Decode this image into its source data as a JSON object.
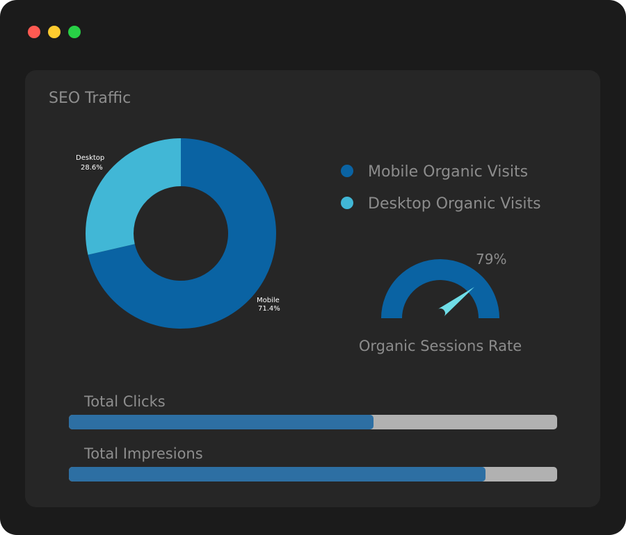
{
  "window": {
    "controls": [
      "close",
      "minimize",
      "maximize"
    ]
  },
  "panel": {
    "title": "SEO Traffic"
  },
  "chart_data": [
    {
      "type": "pie",
      "variant": "donut",
      "categories": [
        "Mobile",
        "Desktop"
      ],
      "values": [
        71.4,
        28.6
      ],
      "labels": [
        "Mobile\n71.4%",
        "Desktop\n28.6%"
      ],
      "label_text": {
        "mobile": "Mobile",
        "mobile_pct": "71.4%",
        "desktop": "Desktop",
        "desktop_pct": "28.6%"
      },
      "colors": [
        "#0a63a3",
        "#41b7d6"
      ]
    }
  ],
  "legend": [
    {
      "label": "Mobile Organic Visits",
      "color": "#0a63a3"
    },
    {
      "label": "Desktop Organic Visits",
      "color": "#41b7d6"
    }
  ],
  "gauge": {
    "value_text": "79%",
    "value": 79,
    "caption": "Organic Sessions Rate",
    "arc_color": "#0a63a3",
    "needle_color": "#6fdde7"
  },
  "metrics": [
    {
      "label": "Total Clicks",
      "fraction": 0.624
    },
    {
      "label": "Total Impresions",
      "fraction": 0.853
    }
  ],
  "colors": {
    "bar_fill": "#2d6fa3",
    "bar_track": "#b1b1b1"
  }
}
